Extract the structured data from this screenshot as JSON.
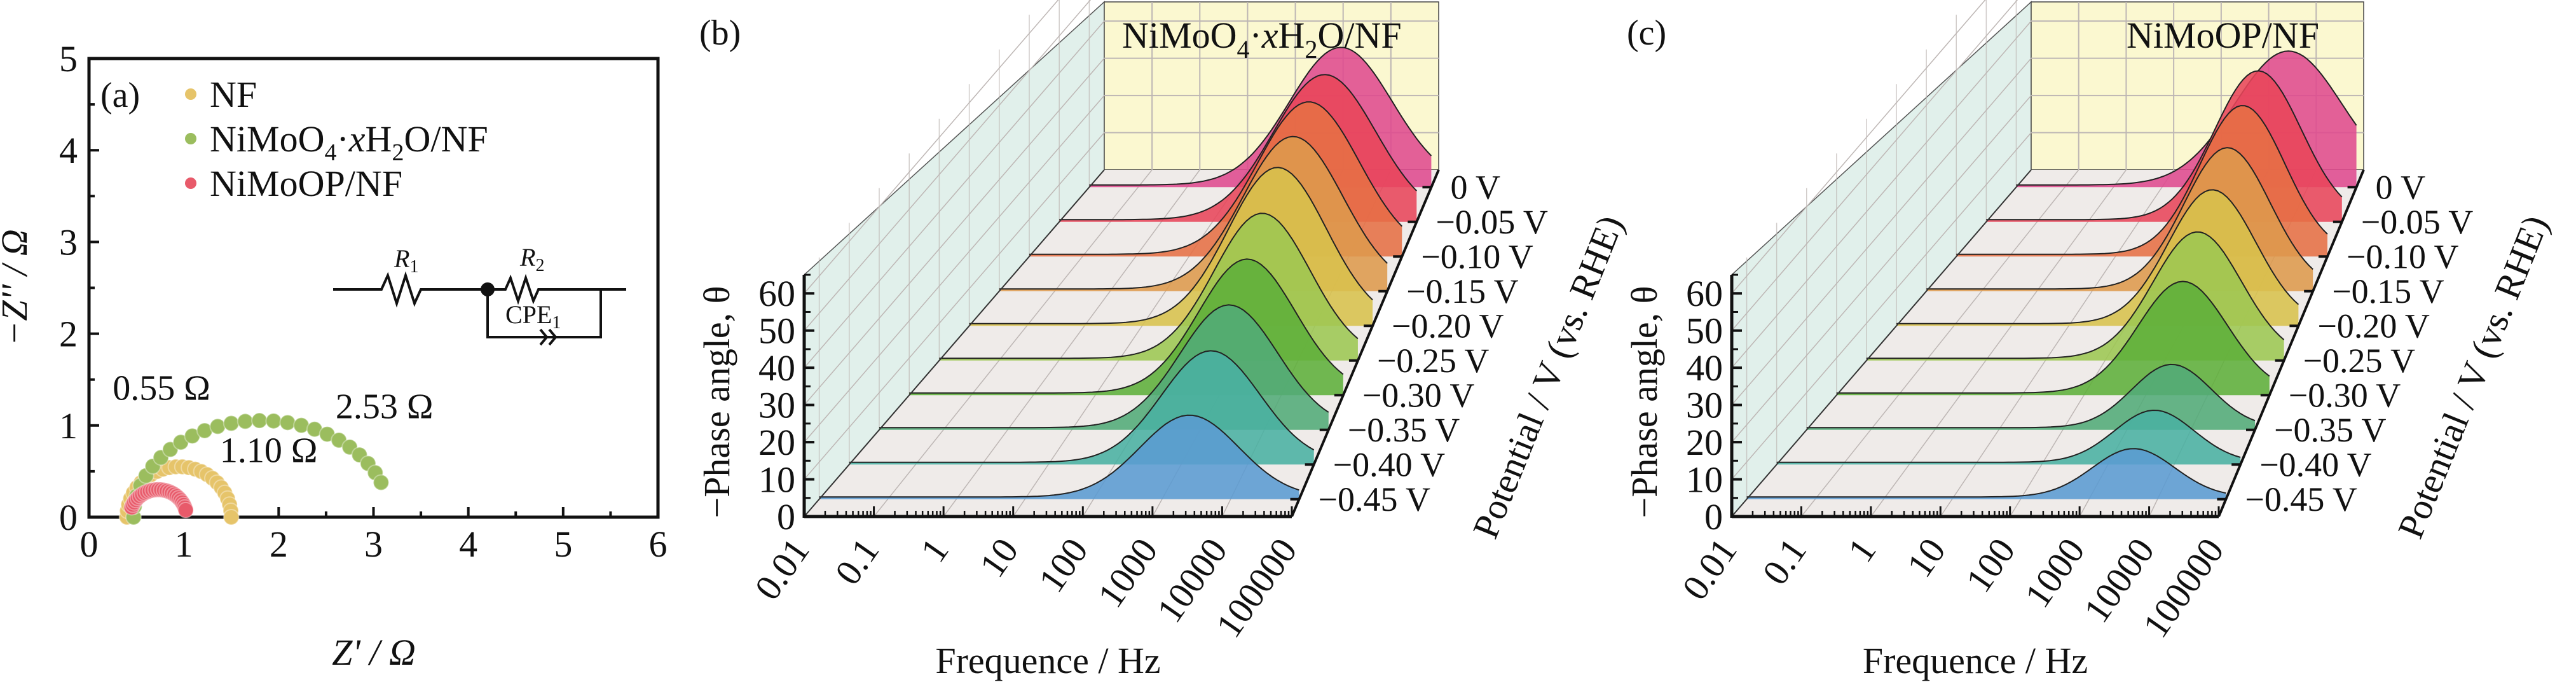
{
  "figure": {
    "panels": [
      "(a)",
      "(b)",
      "(c)"
    ]
  },
  "chart_data": [
    {
      "panel": "(a)",
      "type": "scatter",
      "title": "",
      "xlabel": "Z' / Ω",
      "ylabel": "−Z'' / Ω",
      "xlim": [
        0,
        6
      ],
      "ylim": [
        0,
        5
      ],
      "xticks": [
        "0",
        "1",
        "2",
        "3",
        "4",
        "5",
        "6"
      ],
      "yticks": [
        "0",
        "1",
        "2",
        "3",
        "4",
        "5"
      ],
      "legend_position": "top-left",
      "series": [
        {
          "name": "NF",
          "color": "#e6c46a",
          "center": 0.95,
          "radius": 0.55,
          "start": 0.4,
          "end": 1.5,
          "points": 26
        },
        {
          "name": "NiMoO4·xH2O/NF",
          "color": "#9bbd5e",
          "center": 1.82,
          "radius": 1.35,
          "start": 0.45,
          "end": 3.08,
          "points": 26
        },
        {
          "name": "NiMoOP/NF",
          "color": "#e85a6a",
          "center": 0.73,
          "radius": 0.3,
          "start": 0.45,
          "end": 1.02,
          "points": 26
        }
      ],
      "legend": [
        {
          "label_main": "NF",
          "color": "#e6c46a"
        },
        {
          "label_main": "NiMoO",
          "sub1": "4",
          "mid": "·",
          "italic": "x",
          "mid2": "H",
          "sub2": "2",
          "tail": "O/NF",
          "color": "#9bbd5e"
        },
        {
          "label_main": "NiMoOP/NF",
          "color": "#e85a6a"
        }
      ],
      "annotations": [
        {
          "text": "0.55 Ω",
          "x": 0.25,
          "y": 1.28
        },
        {
          "text": "2.53 Ω",
          "x": 2.6,
          "y": 1.08
        },
        {
          "text": "1.10 Ω",
          "x": 1.38,
          "y": 0.6
        }
      ],
      "circuit": {
        "r1": "R",
        "r1_sub": "1",
        "r2": "R",
        "r2_sub": "2",
        "cpe": "CPE",
        "cpe_sub": "1"
      }
    },
    {
      "panel": "(b)",
      "type": "area",
      "title": "NiMoO4·xH2O/NF",
      "title_parts": {
        "a": "NiMoO",
        "sub1": "4",
        "b": "·",
        "c": "x",
        "d": "H",
        "sub2": "2",
        "e": "O/NF"
      },
      "xlabel": "Frequence / Hz",
      "ylabel": "−Phase angle, θ",
      "zlabel": "Potential / V (vs. RHE)",
      "xscale": "log",
      "xlim": [
        0.01,
        100000
      ],
      "ylim": [
        0,
        65
      ],
      "xticks": [
        "0.01",
        "0.1",
        "1",
        "10",
        "100",
        "1000",
        "10000",
        "100000"
      ],
      "yticks": [
        "0",
        "10",
        "20",
        "30",
        "40",
        "50",
        "60"
      ],
      "series": [
        {
          "name": "0 V",
          "peak_log_freq": 3.15,
          "peak_phase": 37,
          "width": 1.05,
          "color": "#df4a8e"
        },
        {
          "name": "−0.05 V",
          "peak_log_freq": 3.2,
          "peak_phase": 39,
          "width": 1.0,
          "color": "#e8455a"
        },
        {
          "name": "−0.10 V",
          "peak_log_freq": 3.25,
          "peak_phase": 41,
          "width": 0.95,
          "color": "#e67044"
        },
        {
          "name": "−0.15 V",
          "peak_log_freq": 3.3,
          "peak_phase": 41,
          "width": 0.9,
          "color": "#de9a4c"
        },
        {
          "name": "−0.20 V",
          "peak_log_freq": 3.35,
          "peak_phase": 42,
          "width": 0.85,
          "color": "#d8c24c"
        },
        {
          "name": "−0.25 V",
          "peak_log_freq": 3.4,
          "peak_phase": 39,
          "width": 0.8,
          "color": "#9dc752"
        },
        {
          "name": "−0.30 V",
          "peak_log_freq": 3.45,
          "peak_phase": 36,
          "width": 0.78,
          "color": "#5eaf3a"
        },
        {
          "name": "−0.35 V",
          "peak_log_freq": 3.45,
          "peak_phase": 33,
          "width": 0.76,
          "color": "#52ab78"
        },
        {
          "name": "−0.40 V",
          "peak_log_freq": 3.45,
          "peak_phase": 30,
          "width": 0.74,
          "color": "#4ab0a2"
        },
        {
          "name": "−0.45 V",
          "peak_log_freq": 3.4,
          "peak_phase": 22,
          "width": 0.72,
          "color": "#5b9bd2"
        }
      ]
    },
    {
      "panel": "(c)",
      "type": "area",
      "title": "NiMoOP/NF",
      "xlabel": "Frequence / Hz",
      "ylabel": "−Phase angle, θ",
      "zlabel": "Potential / V (vs. RHE)",
      "xscale": "log",
      "xlim": [
        0.01,
        100000
      ],
      "ylim": [
        0,
        65
      ],
      "xticks": [
        "0.01",
        "0.1",
        "1",
        "10",
        "100",
        "1000",
        "10000",
        "100000"
      ],
      "yticks": [
        "0",
        "10",
        "20",
        "30",
        "40",
        "50",
        "60"
      ],
      "series": [
        {
          "name": "0 V",
          "peak_log_freq": 3.6,
          "peak_phase": 36,
          "width": 1.1,
          "color": "#df4a8e"
        },
        {
          "name": "−0.05 V",
          "peak_log_freq": 3.35,
          "peak_phase": 40,
          "width": 0.85,
          "color": "#e8455a"
        },
        {
          "name": "−0.10 V",
          "peak_log_freq": 3.4,
          "peak_phase": 40,
          "width": 0.8,
          "color": "#e67044"
        },
        {
          "name": "−0.15 V",
          "peak_log_freq": 3.45,
          "peak_phase": 38,
          "width": 0.78,
          "color": "#de9a4c"
        },
        {
          "name": "−0.20 V",
          "peak_log_freq": 3.5,
          "peak_phase": 36,
          "width": 0.76,
          "color": "#d8c24c"
        },
        {
          "name": "−0.25 V",
          "peak_log_freq": 3.55,
          "peak_phase": 34,
          "width": 0.74,
          "color": "#9dc752"
        },
        {
          "name": "−0.30 V",
          "peak_log_freq": 3.6,
          "peak_phase": 30,
          "width": 0.72,
          "color": "#5eaf3a"
        },
        {
          "name": "−0.35 V",
          "peak_log_freq": 3.7,
          "peak_phase": 17,
          "width": 0.62,
          "color": "#52ab78"
        },
        {
          "name": "−0.40 V",
          "peak_log_freq": 3.7,
          "peak_phase": 14,
          "width": 0.6,
          "color": "#4ab0a2"
        },
        {
          "name": "−0.45 V",
          "peak_log_freq": 3.65,
          "peak_phase": 13,
          "width": 0.6,
          "color": "#5b9bd2"
        }
      ]
    }
  ],
  "colors": {
    "back_wall": "#fbf8d0",
    "side_wall": "#e1f0eb",
    "floor": "#efebe9",
    "axis": "#111111",
    "grid": "#bdb6b4"
  }
}
